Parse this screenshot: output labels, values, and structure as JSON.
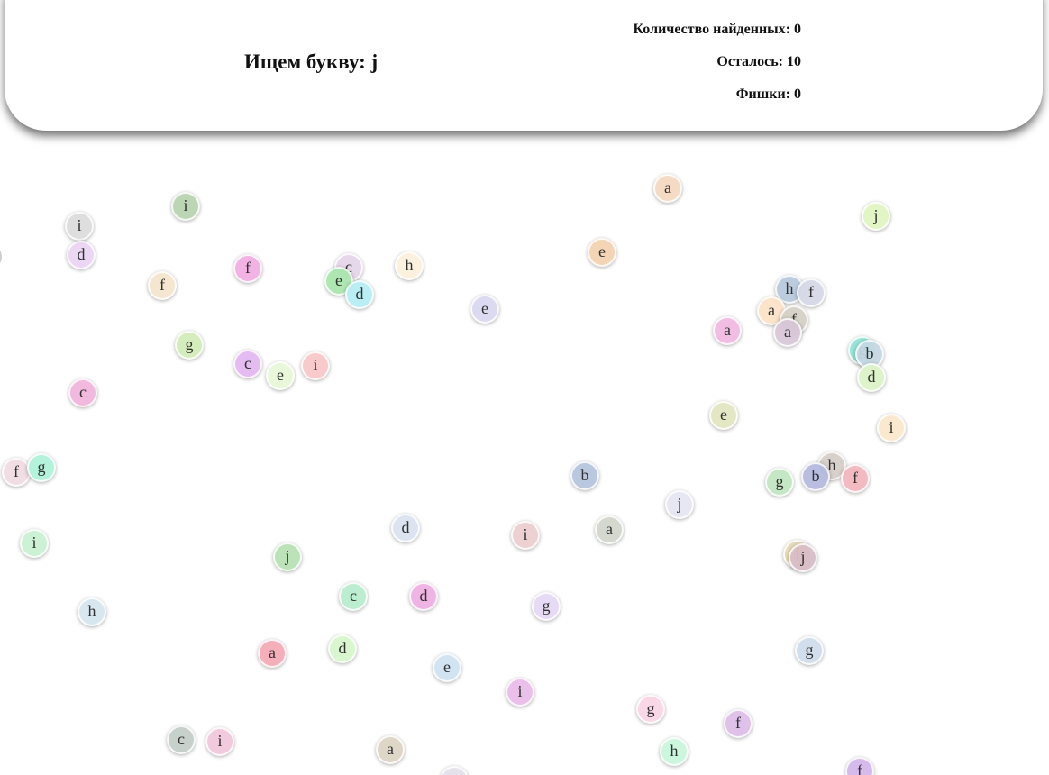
{
  "header": {
    "search_label": "Ищем букву: j",
    "found_label": "Количество найденных: 0",
    "remaining_label": "Осталось: 10",
    "chips_label": "Фишки: 0"
  },
  "chips": [
    {
      "letter": "a",
      "color": "#f6d9c0"
    },
    {
      "letter": "i",
      "color": "#b8d3b0"
    },
    {
      "letter": "j",
      "color": "#e0f5c0"
    },
    {
      "letter": "i",
      "color": "#dcdcdc"
    },
    {
      "letter": "d",
      "color": "#ead3f3"
    },
    {
      "letter": "e",
      "color": "#f3d1b0"
    },
    {
      "letter": "c",
      "color": "#e6d5ea"
    },
    {
      "letter": "h",
      "color": "#fbf0dc"
    },
    {
      "letter": "f",
      "color": "#f2aee3"
    },
    {
      "letter": "e",
      "color": "#a9e6ad"
    },
    {
      "letter": "d",
      "color": "#b4eef4"
    },
    {
      "letter": "f",
      "color": "#f4e5cc"
    },
    {
      "letter": "e",
      "color": "#d9d8ef"
    },
    {
      "letter": "h",
      "color": "#b8c9dc"
    },
    {
      "letter": "f",
      "color": "#d6d8e6"
    },
    {
      "letter": "a",
      "color": "#fbe2c6"
    },
    {
      "letter": "f",
      "color": "#d4d0c4"
    },
    {
      "letter": "a",
      "color": "#f2b9e0"
    },
    {
      "letter": "a",
      "color": "#d8c6d8"
    },
    {
      "letter": "g",
      "color": "#d2ebb8"
    },
    {
      "letter": "c",
      "color": "#e3b7f2"
    },
    {
      "letter": "e",
      "color": "#e8f8d8"
    },
    {
      "letter": "i",
      "color": "#f8c6c8"
    },
    {
      "letter": "g",
      "color": "#90e1d4"
    },
    {
      "letter": "b",
      "color": "#c6d8e4"
    },
    {
      "letter": "d",
      "color": "#ddf3c8"
    },
    {
      "letter": "c",
      "color": "#f2b4dc"
    },
    {
      "letter": "e",
      "color": "#e3e6c0"
    },
    {
      "letter": "i",
      "color": "#fbe8cc"
    },
    {
      "letter": "f",
      "color": "#f1dbe2"
    },
    {
      "letter": "g",
      "color": "#aef2d9"
    },
    {
      "letter": "b",
      "color": "#b4c4dc"
    },
    {
      "letter": "h",
      "color": "#d6cdc8"
    },
    {
      "letter": "g",
      "color": "#c2e6c2"
    },
    {
      "letter": "b",
      "color": "#b4badf"
    },
    {
      "letter": "f",
      "color": "#f3b5be"
    },
    {
      "letter": "j",
      "color": "#e6e6f4"
    },
    {
      "letter": "d",
      "color": "#dbe3f1"
    },
    {
      "letter": "i",
      "color": "#eccdce"
    },
    {
      "letter": "a",
      "color": "#d2d6cc"
    },
    {
      "letter": "i",
      "color": "#c9f0d1"
    },
    {
      "letter": "j",
      "color": "#b7e0b2"
    },
    {
      "letter": "i",
      "color": "#e6dab2"
    },
    {
      "letter": "j",
      "color": "#d8bcc8"
    },
    {
      "letter": "c",
      "color": "#b8ecce"
    },
    {
      "letter": "d",
      "color": "#eeafe2"
    },
    {
      "letter": "g",
      "color": "#e6d8f4"
    },
    {
      "letter": "h",
      "color": "#d6e6ee"
    },
    {
      "letter": "a",
      "color": "#f5a9b6"
    },
    {
      "letter": "d",
      "color": "#d8f6cc"
    },
    {
      "letter": "e",
      "color": "#cfe3f2"
    },
    {
      "letter": "g",
      "color": "#cfdcea"
    },
    {
      "letter": "i",
      "color": "#e9bce9"
    },
    {
      "letter": "g",
      "color": "#fad4e6"
    },
    {
      "letter": "f",
      "color": "#ddbde9"
    },
    {
      "letter": "c",
      "color": "#c4cdc8"
    },
    {
      "letter": "i",
      "color": "#f1c7dc"
    },
    {
      "letter": "a",
      "color": "#dcd4c4"
    },
    {
      "letter": "h",
      "color": "#c9f6dc"
    },
    {
      "letter": "e",
      "color": "#e5e0ea"
    },
    {
      "letter": "f",
      "color": "#d3b5ea"
    }
  ]
}
